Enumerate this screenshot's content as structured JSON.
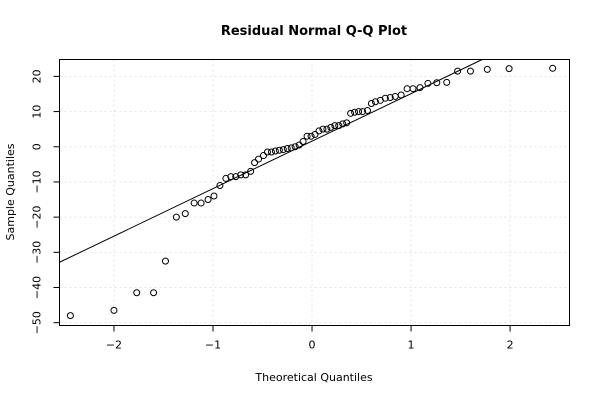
{
  "chart_data": {
    "type": "scatter",
    "title": "Residual Normal Q-Q Plot",
    "xlabel": "Theoretical Quantiles",
    "ylabel": "Sample Quantiles",
    "xlim": [
      -2.55,
      2.6
    ],
    "ylim": [
      -50.8,
      24.8
    ],
    "xticks": [
      -2,
      -1,
      0,
      1,
      2
    ],
    "xtick_labels": [
      "−2",
      "−1",
      "0",
      "1",
      "2"
    ],
    "yticks": [
      -50,
      -40,
      -30,
      -20,
      -10,
      0,
      10,
      20
    ],
    "ytick_labels": [
      "−50",
      "−40",
      "−30",
      "−20",
      "−10",
      "0",
      "10",
      "20"
    ],
    "grid": true,
    "reference_line": {
      "intercept": 1.6,
      "slope": 13.5
    },
    "x": [
      -2.44,
      -2.0,
      -1.77,
      -1.6,
      -1.48,
      -1.37,
      -1.28,
      -1.19,
      -1.12,
      -1.05,
      -0.99,
      -0.93,
      -0.87,
      -0.82,
      -0.77,
      -0.72,
      -0.67,
      -0.62,
      -0.58,
      -0.54,
      -0.49,
      -0.45,
      -0.41,
      -0.37,
      -0.33,
      -0.29,
      -0.25,
      -0.21,
      -0.17,
      -0.13,
      -0.09,
      -0.05,
      -0.01,
      0.03,
      0.07,
      0.11,
      0.15,
      0.19,
      0.23,
      0.27,
      0.31,
      0.35,
      0.39,
      0.43,
      0.47,
      0.51,
      0.56,
      0.6,
      0.64,
      0.69,
      0.74,
      0.79,
      0.84,
      0.9,
      0.96,
      1.02,
      1.09,
      1.17,
      1.26,
      1.36,
      1.47,
      1.6,
      1.77,
      1.99,
      2.43
    ],
    "y": [
      -48,
      -46.5,
      -41.5,
      -41.5,
      -32.5,
      -20,
      -19,
      -16,
      -16,
      -15,
      -14,
      -11,
      -9,
      -8.5,
      -8.5,
      -8,
      -8,
      -7,
      -4.5,
      -3.5,
      -2.5,
      -1.5,
      -1.5,
      -1.2,
      -1,
      -0.8,
      -0.5,
      -0.3,
      0,
      0.5,
      1.5,
      3,
      3,
      3.5,
      4.5,
      5,
      5,
      5.5,
      6,
      6,
      6.5,
      6.8,
      9.5,
      9.8,
      10,
      10,
      10.3,
      12.3,
      12.8,
      13.2,
      13.8,
      14,
      14.3,
      14.7,
      16.5,
      16.5,
      16.8,
      18,
      18.2,
      18.3,
      21.5,
      21.5,
      22,
      22.2,
      22.3
    ]
  }
}
